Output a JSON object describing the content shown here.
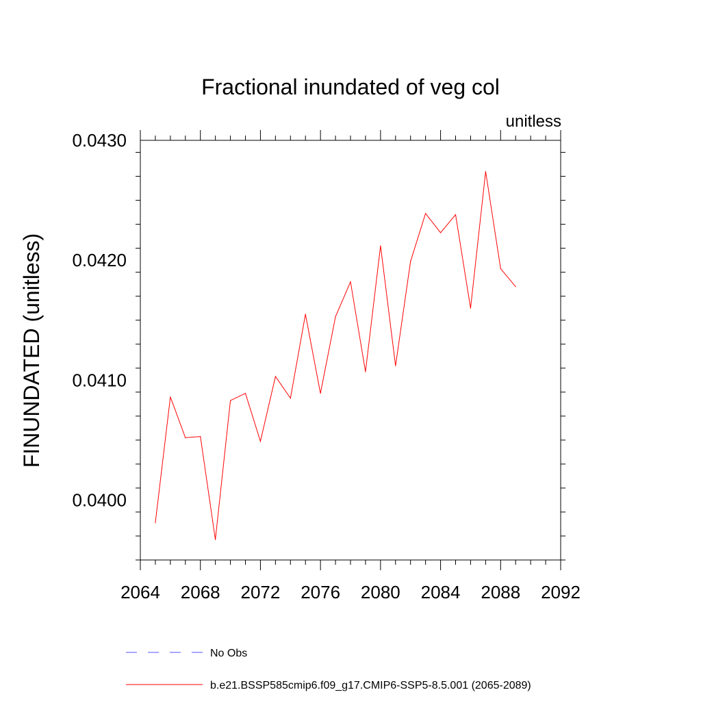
{
  "chart_data": {
    "type": "line",
    "title": "Fractional inundated of veg col",
    "units": "unitless",
    "ylabel": "FINUNDATED  (unitless)",
    "xlabel": "",
    "xlim": [
      2064,
      2092
    ],
    "ylim": [
      0.0395,
      0.043
    ],
    "x_ticks": [
      {
        "value": 2064,
        "label": "2064"
      },
      {
        "value": 2068,
        "label": "2068"
      },
      {
        "value": 2072,
        "label": "2072"
      },
      {
        "value": 2076,
        "label": "2076"
      },
      {
        "value": 2080,
        "label": "2080"
      },
      {
        "value": 2084,
        "label": "2084"
      },
      {
        "value": 2088,
        "label": "2088"
      },
      {
        "value": 2092,
        "label": "2092"
      }
    ],
    "y_ticks": [
      {
        "value": 0.04,
        "label": "0.0400"
      },
      {
        "value": 0.041,
        "label": "0.0410"
      },
      {
        "value": 0.042,
        "label": "0.0420"
      },
      {
        "value": 0.043,
        "label": "0.0430"
      }
    ],
    "grid": false,
    "legend_placement": "bottom",
    "series": [
      {
        "name": "b.e21.BSSP585cmip6.f09_g17.CMIP6-SSP5-8.5.001 (2065-2089)",
        "color": "#ff0000",
        "style": "solid",
        "x": [
          2065,
          2066,
          2067,
          2068,
          2069,
          2070,
          2071,
          2072,
          2073,
          2074,
          2075,
          2076,
          2077,
          2078,
          2079,
          2080,
          2081,
          2082,
          2083,
          2084,
          2085,
          2086,
          2087,
          2088,
          2089
        ],
        "y": [
          0.03981,
          0.04086,
          0.04052,
          0.04053,
          0.03967,
          0.04083,
          0.04089,
          0.04049,
          0.04103,
          0.04085,
          0.04155,
          0.04089,
          0.04153,
          0.04182,
          0.04107,
          0.04212,
          0.04112,
          0.04199,
          0.04239,
          0.04223,
          0.04238,
          0.0416,
          0.04274,
          0.04193,
          0.04178
        ]
      }
    ],
    "legend": [
      {
        "label": "No Obs",
        "color": "#5050ff",
        "style": "dashed"
      },
      {
        "label": "b.e21.BSSP585cmip6.f09_g17.CMIP6-SSP5-8.5.001 (2065-2089)",
        "color": "#ff0000",
        "style": "solid"
      }
    ]
  }
}
